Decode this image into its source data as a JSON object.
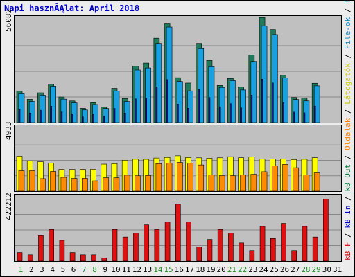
{
  "title": "Napi hasznĂĄlat: April 2018",
  "legend_right": [
    {
      "text": "kB F",
      "color": "#cc0000"
    },
    {
      "text": " / ",
      "color": "#000000"
    },
    {
      "text": "kB In",
      "color": "#0000cc"
    },
    {
      "text": " / ",
      "color": "#000000"
    },
    {
      "text": "kB Out",
      "color": "#008040"
    },
    {
      "text": " / ",
      "color": "#000000"
    },
    {
      "text": "Oldalak",
      "color": "#ff8000"
    },
    {
      "text": " / ",
      "color": "#000000"
    },
    {
      "text": "Látogatók",
      "color": "#cccc00"
    },
    {
      "text": " / ",
      "color": "#000000"
    },
    {
      "text": "File-ok",
      "color": "#0080c0"
    },
    {
      "text": " / ",
      "color": "#000000"
    },
    {
      "text": "Találatok",
      "color": "#008080"
    }
  ],
  "colors": {
    "hits": "#1f7a5c",
    "files": "#19a0e0",
    "files_inner": "#1818a0",
    "visitors": "#ffff00",
    "pages": "#ff8c00",
    "kbytes": "#dd1111",
    "weekend_label": "#228b22",
    "weekday_label": "#000000"
  },
  "chart_data": [
    {
      "type": "bar",
      "panel": "hits-files",
      "ylabel_tick": "56082",
      "ylim": [
        0,
        56082
      ],
      "categories": [
        "1",
        "2",
        "3",
        "4",
        "5",
        "6",
        "7",
        "8",
        "9",
        "10",
        "11",
        "12",
        "13",
        "14",
        "15",
        "16",
        "17",
        "18",
        "19",
        "20",
        "21",
        "22",
        "23",
        "24",
        "25",
        "26",
        "27",
        "28",
        "29",
        "30",
        "31"
      ],
      "weekend": [
        1,
        7,
        8,
        14,
        15,
        21,
        22,
        28,
        29
      ],
      "series": [
        {
          "name": "Találatok",
          "values": [
            17500,
            12900,
            16500,
            21300,
            14200,
            12000,
            7900,
            11000,
            8600,
            19000,
            13300,
            31300,
            33000,
            46800,
            55100,
            24900,
            21900,
            43900,
            34500,
            20600,
            24500,
            19800,
            37500,
            58300,
            51600,
            26300,
            13900,
            13600,
            21800,
            0,
            0
          ]
        },
        {
          "name": "File-ok",
          "values": [
            16000,
            11700,
            15200,
            20200,
            13000,
            10900,
            7000,
            10000,
            7800,
            17400,
            11700,
            29200,
            30300,
            43900,
            53000,
            22800,
            17600,
            41000,
            31000,
            19500,
            23300,
            18100,
            33900,
            53500,
            48800,
            24700,
            12800,
            12000,
            20400,
            0,
            0
          ]
        }
      ]
    },
    {
      "type": "bar",
      "panel": "visitors-pages",
      "ylabel_tick": "4933",
      "ylim": [
        0,
        4933
      ],
      "categories": [
        "1",
        "2",
        "3",
        "4",
        "5",
        "6",
        "7",
        "8",
        "9",
        "10",
        "11",
        "12",
        "13",
        "14",
        "15",
        "16",
        "17",
        "18",
        "19",
        "20",
        "21",
        "22",
        "23",
        "24",
        "25",
        "26",
        "27",
        "28",
        "29",
        "30",
        "31"
      ],
      "series": [
        {
          "name": "Látogatók",
          "values": [
            2742,
            2371,
            2297,
            2187,
            1706,
            1706,
            1706,
            1713,
            2112,
            2153,
            2422,
            2501,
            2493,
            2595,
            2644,
            2772,
            2637,
            2612,
            2578,
            2614,
            2701,
            2618,
            2679,
            2520,
            2520,
            2520,
            2470,
            2498,
            2618,
            0,
            0
          ]
        },
        {
          "name": "Oldalak",
          "values": [
            1597,
            1597,
            979,
            1546,
            1084,
            1002,
            1004,
            809,
            1054,
            1046,
            1252,
            1208,
            1227,
            2154,
            2184,
            2247,
            2198,
            2052,
            1264,
            1221,
            1217,
            1269,
            1321,
            1521,
            1978,
            2093,
            1836,
            1285,
            1436,
            0,
            0
          ]
        }
      ]
    },
    {
      "type": "bar",
      "panel": "kbytes",
      "ylabel_tick": "422212",
      "ylim": [
        0,
        422212
      ],
      "categories": [
        "1",
        "2",
        "3",
        "4",
        "5",
        "6",
        "7",
        "8",
        "9",
        "10",
        "11",
        "12",
        "13",
        "14",
        "15",
        "16",
        "17",
        "18",
        "19",
        "20",
        "21",
        "22",
        "23",
        "24",
        "25",
        "26",
        "27",
        "28",
        "29",
        "30",
        "31"
      ],
      "series": [
        {
          "name": "kB F",
          "values": [
            57000,
            42000,
            169000,
            210000,
            138000,
            57000,
            42000,
            42000,
            21000,
            210000,
            160000,
            185000,
            240000,
            210000,
            260000,
            377000,
            260000,
            95000,
            144000,
            210000,
            185000,
            120000,
            70000,
            230000,
            150000,
            250000,
            70000,
            230000,
            160000,
            410000,
            0
          ]
        }
      ]
    }
  ]
}
